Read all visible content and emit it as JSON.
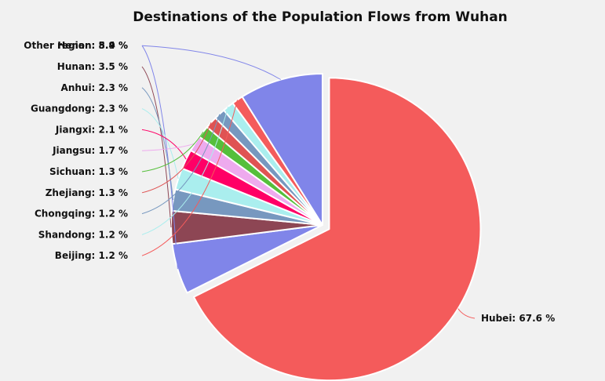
{
  "chart_data": {
    "type": "pie",
    "title": "Destinations of the Population Flows from Wuhan",
    "unit": "%",
    "slices": [
      {
        "label": "Hubei",
        "value": 67.6,
        "color": "#f45b5b"
      },
      {
        "label": "Henan",
        "value": 5.4,
        "color": "#8085e9"
      },
      {
        "label": "Hunan",
        "value": 3.5,
        "color": "#8d4654"
      },
      {
        "label": "Anhui",
        "value": 2.3,
        "color": "#7798bf"
      },
      {
        "label": "Guangdong",
        "value": 2.3,
        "color": "#aaeeee"
      },
      {
        "label": "Jiangxi",
        "value": 2.1,
        "color": "#ff0066"
      },
      {
        "label": "Jiangsu",
        "value": 1.7,
        "color": "#eeaaee"
      },
      {
        "label": "Sichuan",
        "value": 1.3,
        "color": "#55bf3b"
      },
      {
        "label": "Zhejiang",
        "value": 1.3,
        "color": "#df5353"
      },
      {
        "label": "Chongqing",
        "value": 1.2,
        "color": "#7798bf"
      },
      {
        "label": "Shandong",
        "value": 1.2,
        "color": "#aaeeee"
      },
      {
        "label": "Beijing",
        "value": 1.2,
        "color": "#f45b5b"
      },
      {
        "label": "Other region",
        "value": 8.9,
        "color": "#8085e9"
      }
    ]
  }
}
